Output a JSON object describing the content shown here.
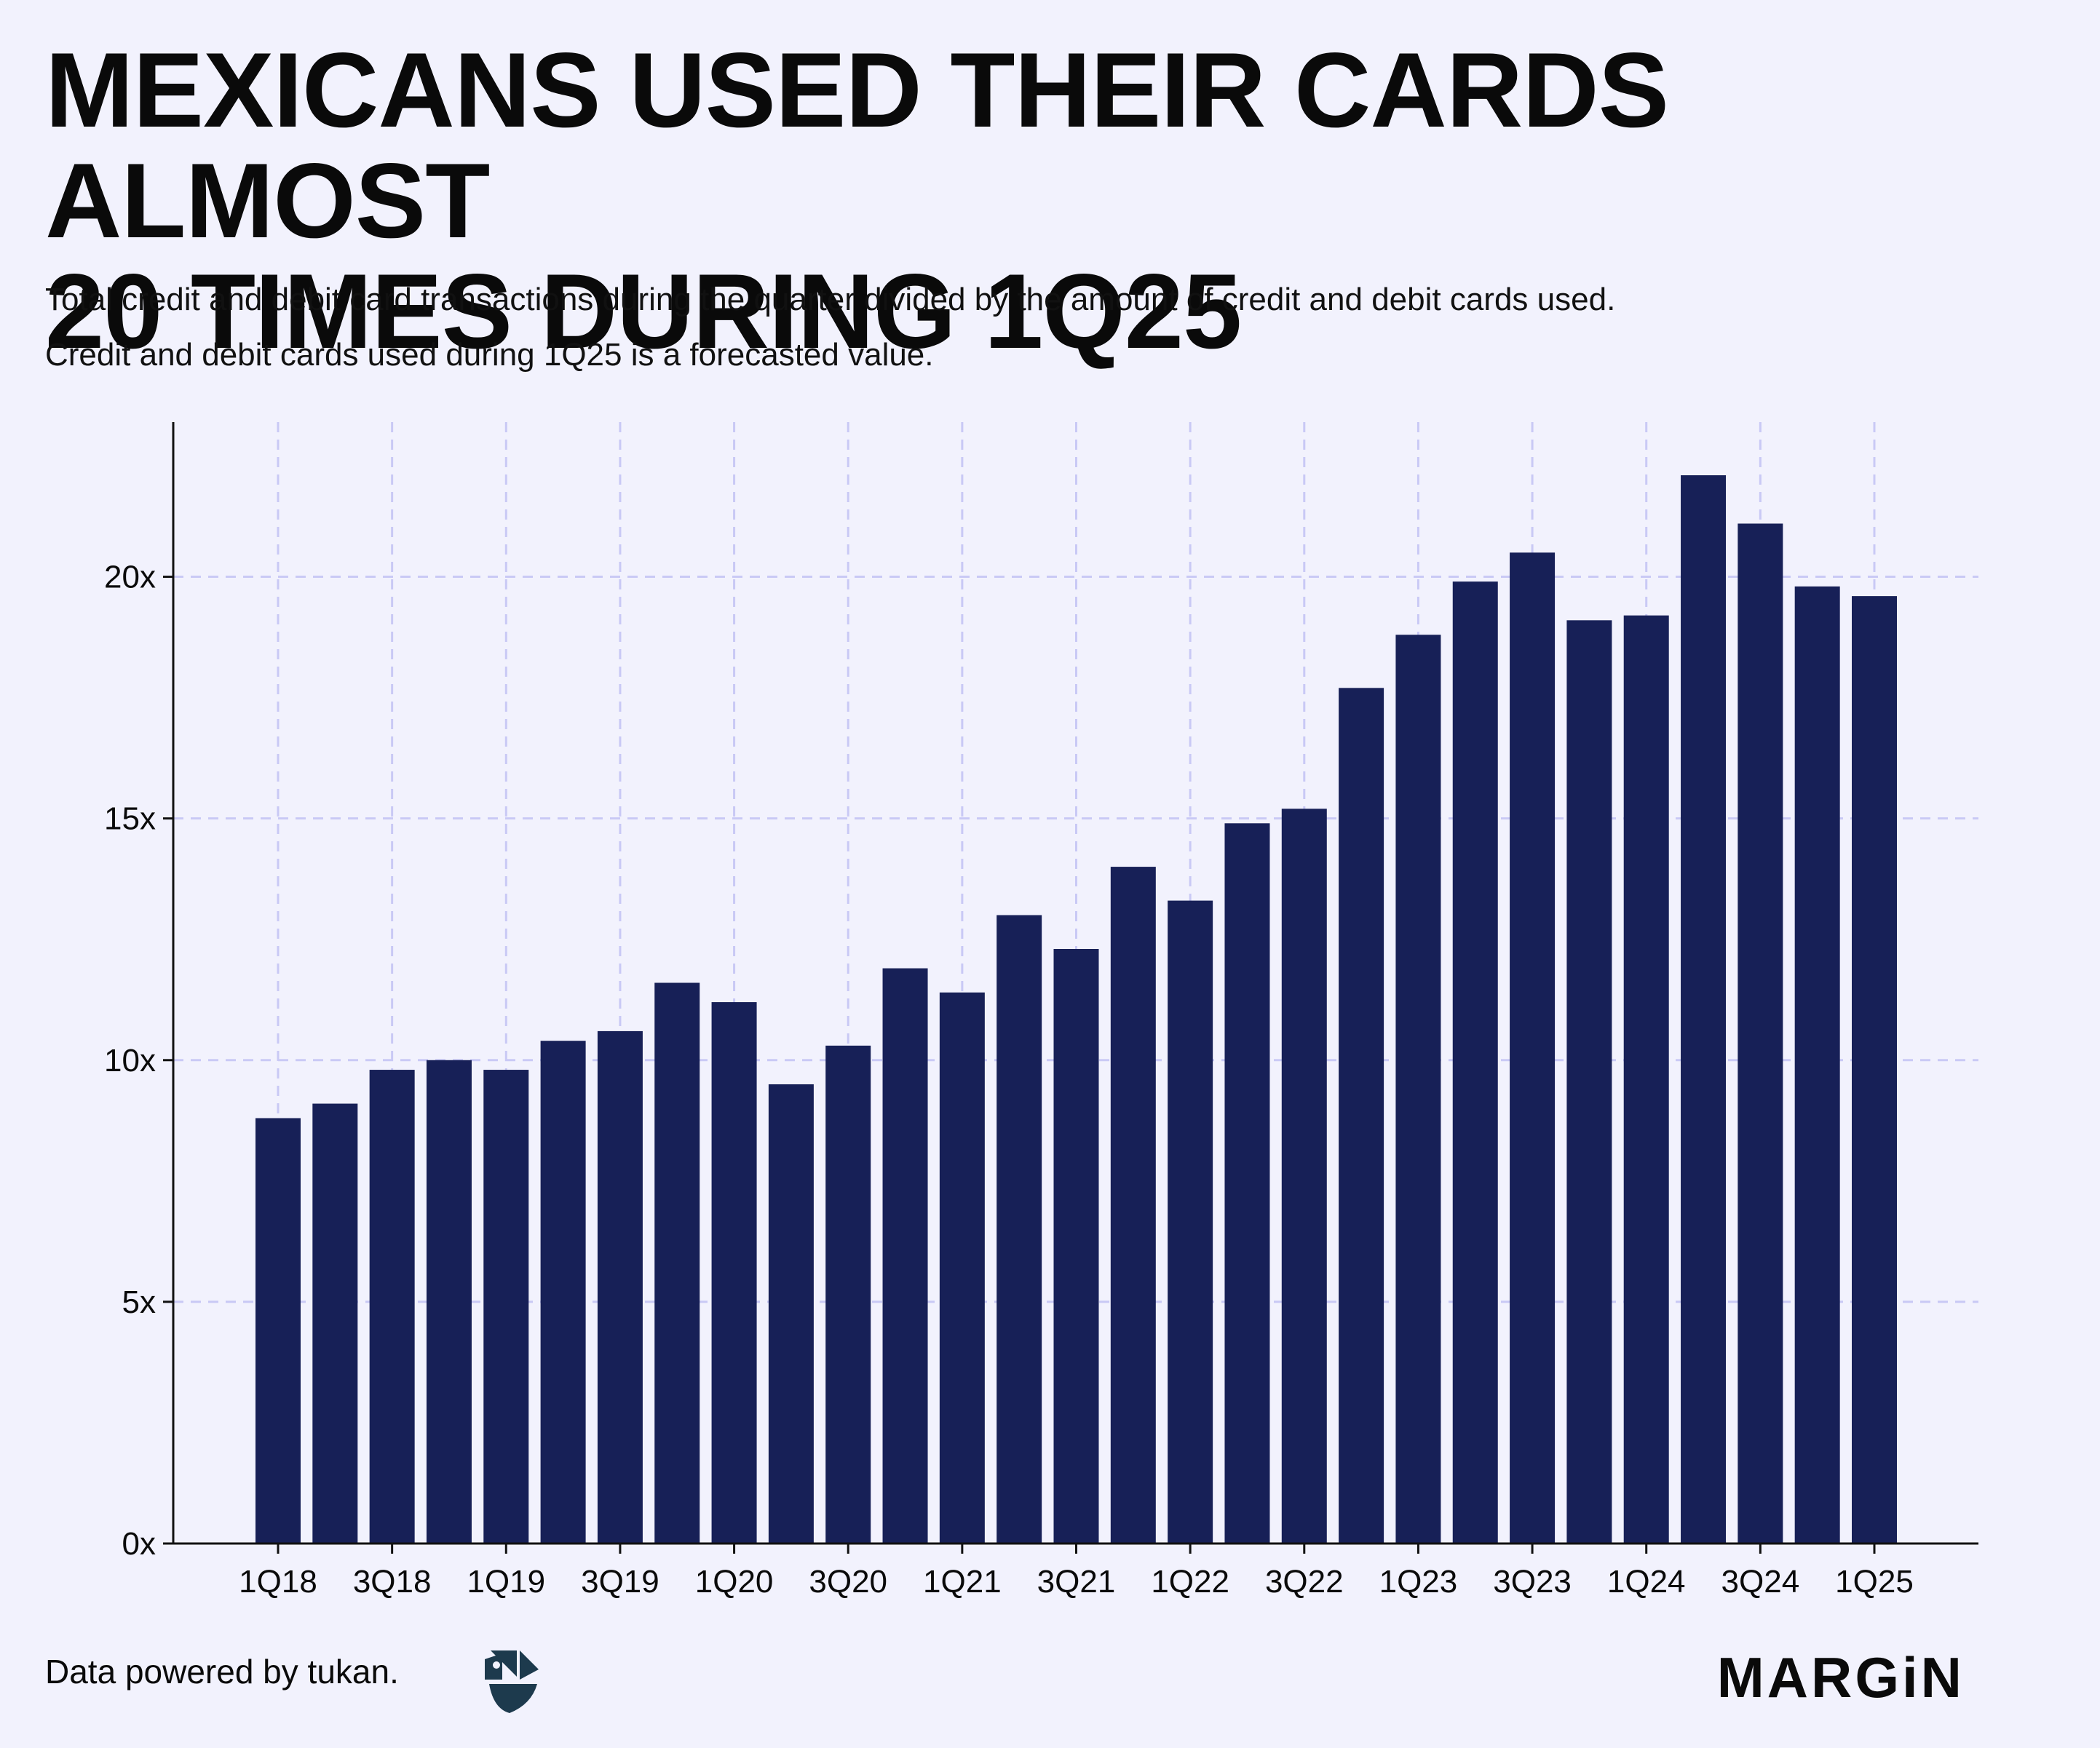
{
  "header": {
    "title_line1": "MEXICANS USED THEIR CARDS ALMOST",
    "title_line2": "20 TIMES DURING 1Q25",
    "subtitle_line1": "Total credit and debit card transactions during the quarter divided by the amount of credit and debit cards used.",
    "subtitle_line2": "Credit and debit cards used during 1Q25 is a forecasted value."
  },
  "footer": {
    "credit": "Data powered by tukan.",
    "brand": "MARGiN"
  },
  "colors": {
    "background": "#f2f2fd",
    "bar": "#172057",
    "grid": "#c9c9f5",
    "axis": "#111111",
    "text": "#0a0a0a"
  },
  "chart_data": {
    "type": "bar",
    "title": "MEXICANS USED THEIR CARDS ALMOST 20 TIMES DURING 1Q25",
    "xlabel": "",
    "ylabel": "",
    "categories": [
      "1Q18",
      "2Q18",
      "3Q18",
      "4Q18",
      "1Q19",
      "2Q19",
      "3Q19",
      "4Q19",
      "1Q20",
      "2Q20",
      "3Q20",
      "4Q20",
      "1Q21",
      "2Q21",
      "3Q21",
      "4Q21",
      "1Q22",
      "2Q22",
      "3Q22",
      "4Q22",
      "1Q23",
      "2Q23",
      "3Q23",
      "4Q23",
      "1Q24",
      "2Q24",
      "3Q24",
      "4Q24",
      "1Q25"
    ],
    "x_tick_labels": [
      "1Q18",
      "3Q18",
      "1Q19",
      "3Q19",
      "1Q20",
      "3Q20",
      "1Q21",
      "3Q21",
      "1Q22",
      "3Q22",
      "1Q23",
      "3Q23",
      "1Q24",
      "3Q24",
      "1Q25"
    ],
    "values": [
      8.8,
      9.1,
      9.8,
      10.0,
      9.8,
      10.4,
      10.6,
      11.6,
      11.2,
      9.5,
      10.3,
      11.9,
      11.4,
      13.0,
      12.3,
      14.0,
      13.3,
      14.9,
      15.2,
      17.7,
      18.8,
      19.9,
      20.5,
      19.1,
      19.2,
      22.1,
      21.1,
      19.8,
      19.6
    ],
    "ylim": [
      0,
      23.2
    ],
    "y_ticks": [
      0,
      5,
      10,
      15,
      20
    ],
    "y_tick_labels": [
      "0x",
      "5x",
      "10x",
      "15x",
      "20x"
    ],
    "grid": true,
    "legend": "none"
  }
}
